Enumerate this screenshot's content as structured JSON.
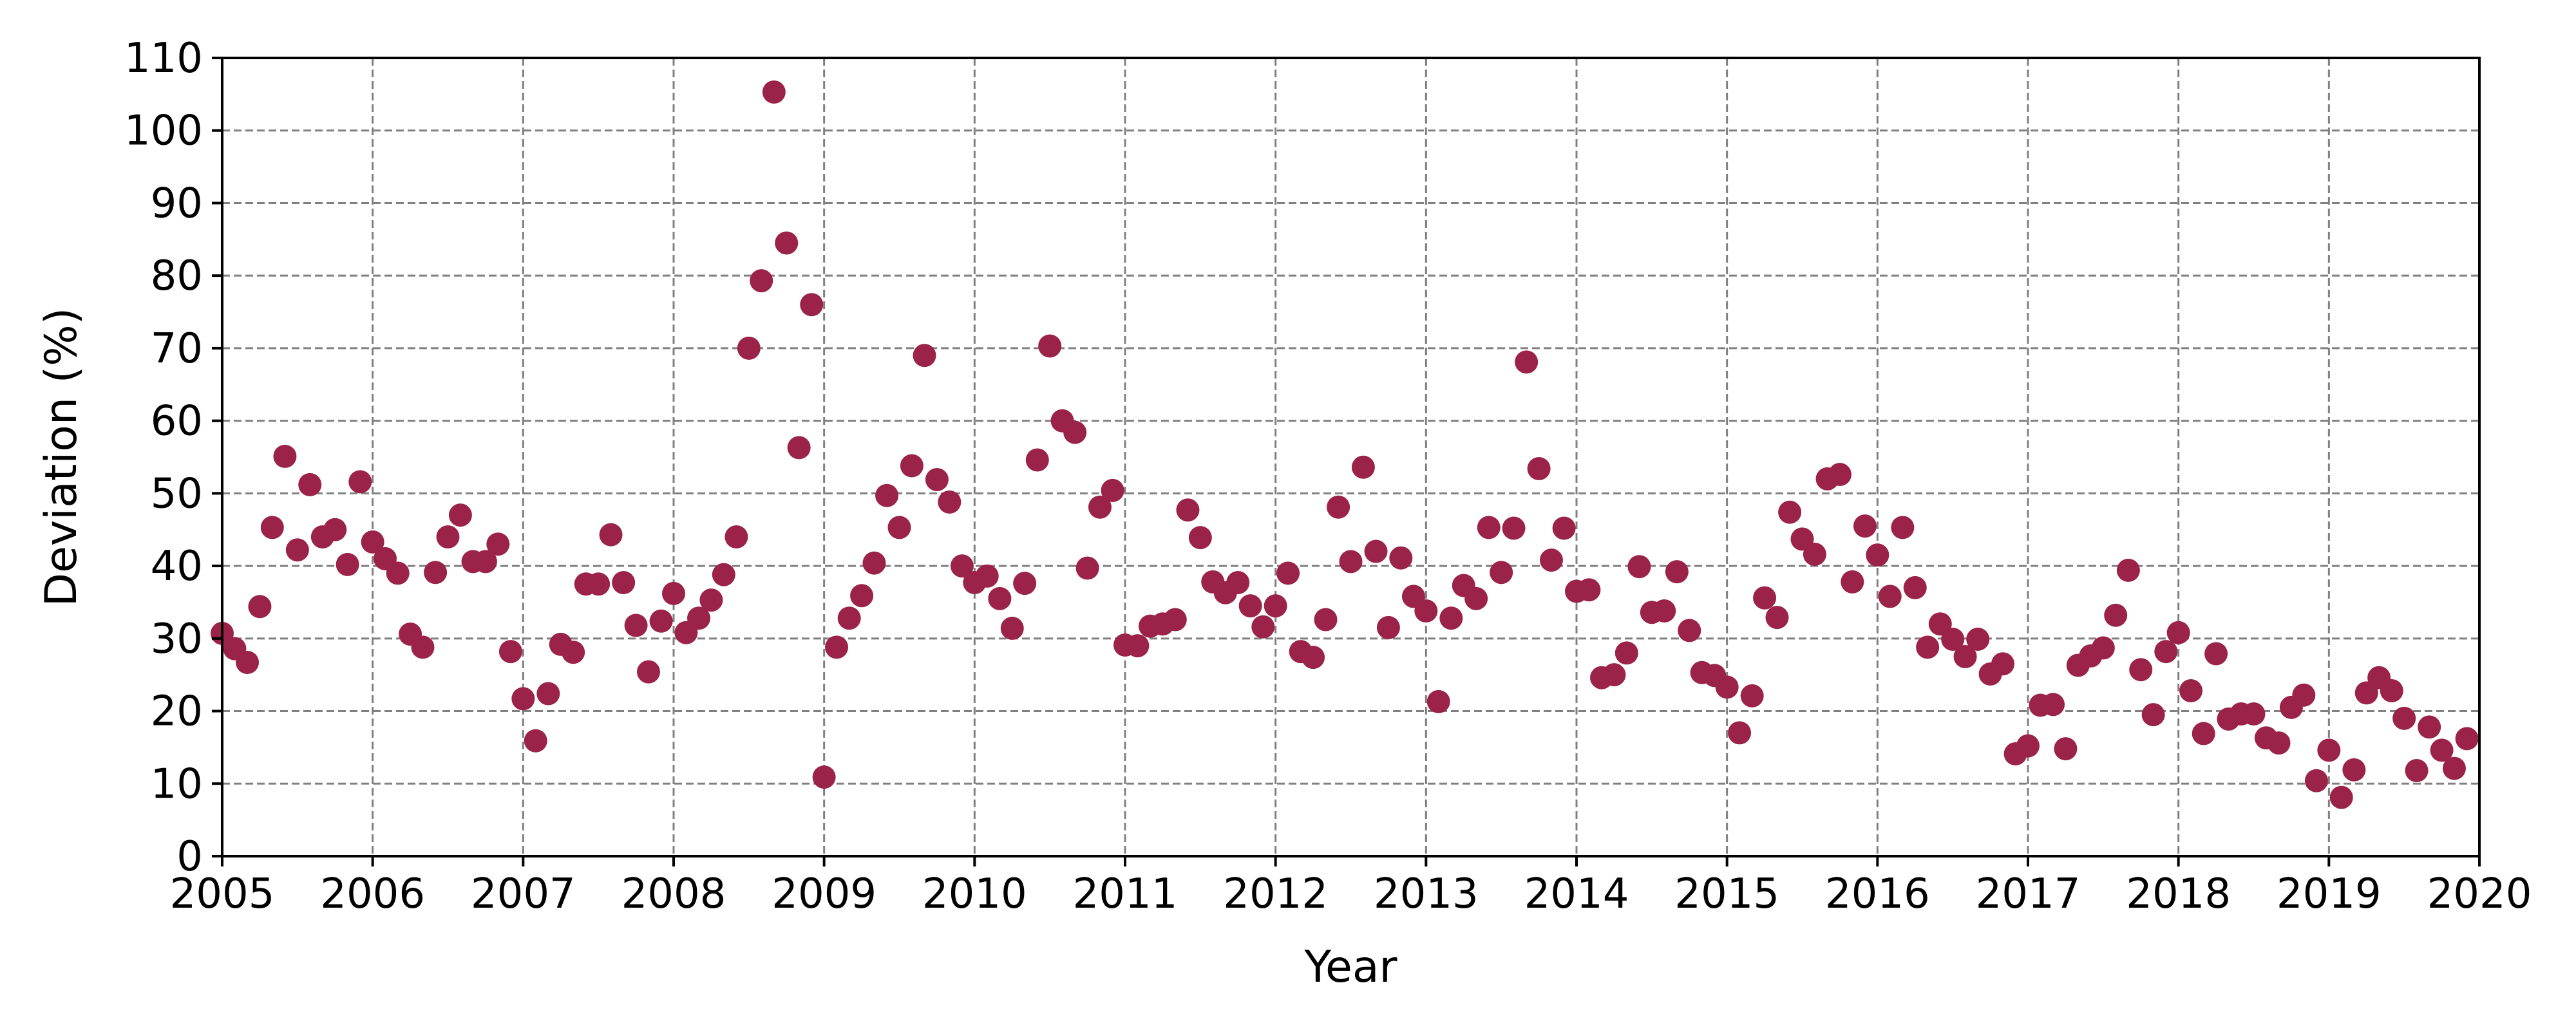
{
  "chart_data": {
    "type": "scatter",
    "title": "",
    "xlabel": "Year",
    "ylabel": "Deviation (%)",
    "xlim": [
      2005,
      2020
    ],
    "ylim": [
      0,
      110
    ],
    "x_ticks": [
      "2005",
      "2006",
      "2007",
      "2008",
      "2009",
      "2010",
      "2011",
      "2012",
      "2013",
      "2014",
      "2015",
      "2016",
      "2017",
      "2018",
      "2019",
      "2020"
    ],
    "y_ticks": [
      "0",
      "10",
      "20",
      "30",
      "40",
      "50",
      "60",
      "70",
      "80",
      "90",
      "100",
      "110"
    ],
    "grid": true,
    "grid_style": "dashed",
    "marker_color": "#9b2248",
    "series": [
      {
        "x": [
          2005.0,
          2005.083,
          2005.167,
          2005.25,
          2005.333,
          2005.417,
          2005.5,
          2005.583,
          2005.667,
          2005.75,
          2005.833,
          2005.917,
          2006.0,
          2006.083,
          2006.167,
          2006.25,
          2006.333,
          2006.417,
          2006.5,
          2006.583,
          2006.667,
          2006.75,
          2006.833,
          2006.917,
          2007.0,
          2007.083,
          2007.167,
          2007.25,
          2007.333,
          2007.417,
          2007.5,
          2007.583,
          2007.667,
          2007.75,
          2007.833,
          2007.917,
          2008.0,
          2008.083,
          2008.167,
          2008.25,
          2008.333,
          2008.417,
          2008.5,
          2008.583,
          2008.667,
          2008.75,
          2008.833,
          2008.917,
          2009.0,
          2009.083,
          2009.167,
          2009.25,
          2009.333,
          2009.417,
          2009.5,
          2009.583,
          2009.667,
          2009.75,
          2009.833,
          2009.917,
          2010.0,
          2010.083,
          2010.167,
          2010.25,
          2010.333,
          2010.417,
          2010.5,
          2010.583,
          2010.667,
          2010.75,
          2010.833,
          2010.917,
          2011.0,
          2011.083,
          2011.167,
          2011.25,
          2011.333,
          2011.417,
          2011.5,
          2011.583,
          2011.667,
          2011.75,
          2011.833,
          2011.917,
          2012.0,
          2012.083,
          2012.167,
          2012.25,
          2012.333,
          2012.417,
          2012.5,
          2012.583,
          2012.667,
          2012.75,
          2012.833,
          2012.917,
          2013.0,
          2013.083,
          2013.167,
          2013.25,
          2013.333,
          2013.417,
          2013.5,
          2013.583,
          2013.667,
          2013.75,
          2013.833,
          2013.917,
          2014.0,
          2014.083,
          2014.167,
          2014.25,
          2014.333,
          2014.417,
          2014.5,
          2014.583,
          2014.667,
          2014.75,
          2014.833,
          2014.917,
          2015.0,
          2015.083,
          2015.167,
          2015.25,
          2015.333,
          2015.417,
          2015.5,
          2015.583,
          2015.667,
          2015.75,
          2015.833,
          2015.917,
          2016.0,
          2016.083,
          2016.167,
          2016.25,
          2016.333,
          2016.417,
          2016.5,
          2016.583,
          2016.667,
          2016.75,
          2016.833,
          2016.917,
          2017.0,
          2017.083,
          2017.167,
          2017.25,
          2017.333,
          2017.417,
          2017.5,
          2017.583,
          2017.667,
          2017.75,
          2017.833,
          2017.917,
          2018.0,
          2018.083,
          2018.167,
          2018.25,
          2018.333,
          2018.417,
          2018.5,
          2018.583,
          2018.667,
          2018.75,
          2018.833,
          2018.917,
          2019.0,
          2019.083,
          2019.167,
          2019.25,
          2019.333,
          2019.417,
          2019.5,
          2019.583,
          2019.667,
          2019.75,
          2019.833,
          2019.917
        ],
        "y": [
          30.7,
          28.6,
          26.7,
          34.4,
          45.3,
          55.1,
          42.2,
          51.2,
          44.0,
          45.0,
          40.2,
          51.6,
          43.3,
          41.0,
          39.0,
          30.6,
          28.8,
          39.1,
          44.0,
          47.0,
          40.6,
          40.6,
          43.0,
          28.2,
          21.7,
          15.9,
          22.4,
          29.2,
          28.1,
          37.5,
          37.5,
          44.3,
          37.7,
          31.8,
          25.4,
          32.4,
          36.2,
          30.8,
          32.8,
          35.3,
          38.8,
          44.0,
          70.0,
          79.3,
          105.3,
          84.5,
          56.3,
          76.0,
          10.9,
          28.8,
          32.8,
          35.9,
          40.4,
          49.7,
          45.3,
          53.8,
          69.0,
          51.9,
          48.8,
          40.0,
          37.7,
          38.6,
          35.5,
          31.4,
          37.6,
          54.6,
          70.3,
          60.0,
          58.4,
          39.7,
          48.1,
          50.4,
          29.1,
          29.0,
          31.7,
          32.0,
          32.6,
          47.7,
          43.9,
          37.8,
          36.3,
          37.7,
          34.5,
          31.6,
          34.5,
          39.0,
          28.2,
          27.4,
          32.6,
          48.1,
          40.6,
          53.6,
          42.0,
          31.5,
          41.1,
          35.8,
          33.8,
          21.3,
          32.8,
          37.3,
          35.5,
          45.3,
          39.1,
          45.2,
          68.1,
          53.4,
          40.8,
          45.2,
          36.5,
          36.7,
          24.6,
          25.0,
          28.0,
          39.9,
          33.6,
          33.8,
          39.2,
          31.1,
          25.3,
          24.9,
          23.3,
          17.0,
          22.1,
          35.6,
          32.9,
          47.4,
          43.7,
          41.6,
          52.0,
          52.6,
          37.8,
          45.5,
          41.5,
          35.8,
          45.3,
          37.0,
          28.8,
          32.0,
          29.9,
          27.5,
          29.9,
          25.1,
          26.5,
          14.1,
          15.2,
          20.8,
          20.9,
          14.8,
          26.3,
          27.6,
          28.7,
          33.2,
          39.4,
          25.7,
          19.5,
          28.2,
          30.8,
          22.8,
          16.9,
          27.9,
          18.9,
          19.6,
          19.6,
          16.3,
          15.6,
          20.5,
          22.2,
          10.4,
          14.6,
          8.1,
          11.9,
          22.5,
          24.6,
          22.8,
          19.0,
          11.8,
          17.8,
          14.6,
          12.1,
          16.2
        ]
      }
    ]
  }
}
